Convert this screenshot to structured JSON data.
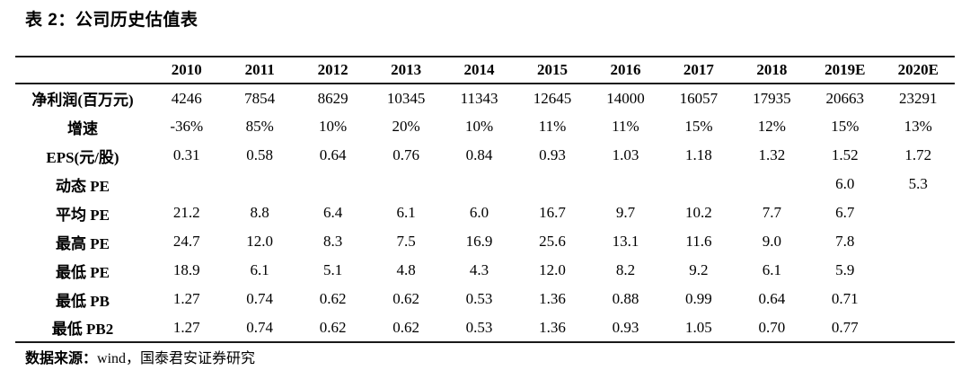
{
  "title": "表 2：公司历史估值表",
  "table": {
    "columns": [
      "",
      "2010",
      "2011",
      "2012",
      "2013",
      "2014",
      "2015",
      "2016",
      "2017",
      "2018",
      "2019E",
      "2020E"
    ],
    "rows": [
      {
        "label": "净利润(百万元)",
        "values": [
          "4246",
          "7854",
          "8629",
          "10345",
          "11343",
          "12645",
          "14000",
          "16057",
          "17935",
          "20663",
          "23291"
        ]
      },
      {
        "label": "增速",
        "values": [
          "-36%",
          "85%",
          "10%",
          "20%",
          "10%",
          "11%",
          "11%",
          "15%",
          "12%",
          "15%",
          "13%"
        ]
      },
      {
        "label": "EPS(元/股)",
        "values": [
          "0.31",
          "0.58",
          "0.64",
          "0.76",
          "0.84",
          "0.93",
          "1.03",
          "1.18",
          "1.32",
          "1.52",
          "1.72"
        ]
      },
      {
        "label": "动态 PE",
        "values": [
          "",
          "",
          "",
          "",
          "",
          "",
          "",
          "",
          "",
          "6.0",
          "5.3"
        ]
      },
      {
        "label": "平均 PE",
        "values": [
          "21.2",
          "8.8",
          "6.4",
          "6.1",
          "6.0",
          "16.7",
          "9.7",
          "10.2",
          "7.7",
          "6.7",
          ""
        ]
      },
      {
        "label": "最高 PE",
        "values": [
          "24.7",
          "12.0",
          "8.3",
          "7.5",
          "16.9",
          "25.6",
          "13.1",
          "11.6",
          "9.0",
          "7.8",
          ""
        ]
      },
      {
        "label": "最低 PE",
        "values": [
          "18.9",
          "6.1",
          "5.1",
          "4.8",
          "4.3",
          "12.0",
          "8.2",
          "9.2",
          "6.1",
          "5.9",
          ""
        ]
      },
      {
        "label": "最低 PB",
        "values": [
          "1.27",
          "0.74",
          "0.62",
          "0.62",
          "0.53",
          "1.36",
          "0.88",
          "0.99",
          "0.64",
          "0.71",
          ""
        ]
      },
      {
        "label": "最低 PB2",
        "values": [
          "1.27",
          "0.74",
          "0.62",
          "0.62",
          "0.53",
          "1.36",
          "0.93",
          "1.05",
          "0.70",
          "0.77",
          ""
        ]
      }
    ]
  },
  "footer": {
    "source_label": "数据来源：",
    "source_text": "wind，国泰君安证券研究"
  }
}
